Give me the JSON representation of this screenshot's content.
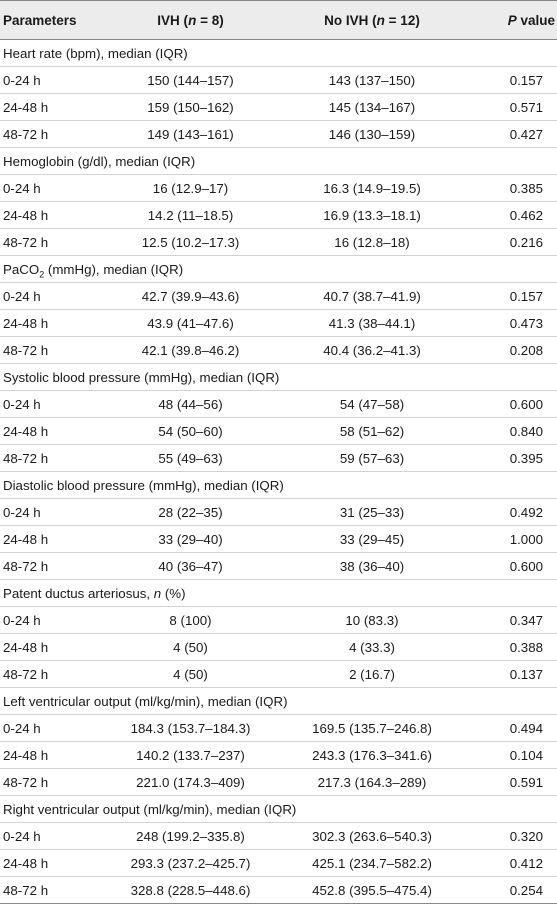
{
  "header": {
    "parameters": "Parameters",
    "ivh_prefix": "IVH (",
    "ivh_n": "n",
    "ivh_suffix": " = 8)",
    "noivh_prefix": "No IVH (",
    "noivh_n": "n",
    "noivh_suffix": " = 12)",
    "p_letter": "P",
    "p_rest": " value"
  },
  "sections": [
    {
      "title": "Heart rate (bpm), median (IQR)",
      "rows": [
        {
          "label": "0-24 h",
          "ivh": "150 (144–157)",
          "no_ivh": "143 (137–150)",
          "p": "0.157"
        },
        {
          "label": "24-48 h",
          "ivh": "159 (150–162)",
          "no_ivh": "145 (134–167)",
          "p": "0.571"
        },
        {
          "label": "48-72 h",
          "ivh": "149 (143–161)",
          "no_ivh": "146 (130–159)",
          "p": "0.427"
        }
      ]
    },
    {
      "title": "Hemoglobin (g/dl), median (IQR)",
      "rows": [
        {
          "label": "0-24 h",
          "ivh": "16 (12.9–17)",
          "no_ivh": "16.3 (14.9–19.5)",
          "p": "0.385"
        },
        {
          "label": "24-48 h",
          "ivh": "14.2 (11–18.5)",
          "no_ivh": "16.9 (13.3–18.1)",
          "p": "0.462"
        },
        {
          "label": "48-72 h",
          "ivh": "12.5 (10.2–17.3)",
          "no_ivh": "16 (12.8–18)",
          "p": "0.216"
        }
      ]
    },
    {
      "title_prefix": "PaCO",
      "title_sub": "2",
      "title_suffix": " (mmHg), median (IQR)",
      "rows": [
        {
          "label": "0-24 h",
          "ivh": "42.7 (39.9–43.6)",
          "no_ivh": "40.7 (38.7–41.9)",
          "p": "0.157"
        },
        {
          "label": "24-48 h",
          "ivh": "43.9 (41–47.6)",
          "no_ivh": "41.3 (38–44.1)",
          "p": "0.473"
        },
        {
          "label": "48-72 h",
          "ivh": "42.1 (39.8–46.2)",
          "no_ivh": "40.4 (36.2–41.3)",
          "p": "0.208"
        }
      ]
    },
    {
      "title": "Systolic blood pressure (mmHg), median (IQR)",
      "rows": [
        {
          "label": "0-24 h",
          "ivh": "48 (44–56)",
          "no_ivh": "54 (47–58)",
          "p": "0.600"
        },
        {
          "label": "24-48 h",
          "ivh": "54 (50–60)",
          "no_ivh": "58 (51–62)",
          "p": "0.840"
        },
        {
          "label": "48-72 h",
          "ivh": "55 (49–63)",
          "no_ivh": "59 (57–63)",
          "p": "0.395"
        }
      ]
    },
    {
      "title": "Diastolic blood pressure (mmHg), median (IQR)",
      "rows": [
        {
          "label": "0-24 h",
          "ivh": "28 (22–35)",
          "no_ivh": "31 (25–33)",
          "p": "0.492"
        },
        {
          "label": "24-48 h",
          "ivh": "33 (29–40)",
          "no_ivh": "33 (29–45)",
          "p": "1.000"
        },
        {
          "label": "48-72 h",
          "ivh": "40 (36–47)",
          "no_ivh": "38 (36–40)",
          "p": "0.600"
        }
      ]
    },
    {
      "title_prefix": "Patent ductus arteriosus, ",
      "title_italic": "n",
      "title_suffix": " (%)",
      "rows": [
        {
          "label": "0-24 h",
          "ivh": "8 (100)",
          "no_ivh": "10 (83.3)",
          "p": "0.347"
        },
        {
          "label": "24-48 h",
          "ivh": "4 (50)",
          "no_ivh": "4 (33.3)",
          "p": "0.388"
        },
        {
          "label": "48-72 h",
          "ivh": "4 (50)",
          "no_ivh": "2 (16.7)",
          "p": "0.137"
        }
      ]
    },
    {
      "title": "Left ventricular output (ml/kg/min), median (IQR)",
      "rows": [
        {
          "label": "0-24 h",
          "ivh": "184.3 (153.7–184.3)",
          "no_ivh": "169.5 (135.7–246.8)",
          "p": "0.494"
        },
        {
          "label": "24-48 h",
          "ivh": "140.2 (133.7–237)",
          "no_ivh": "243.3 (176.3–341.6)",
          "p": "0.104"
        },
        {
          "label": "48-72 h",
          "ivh": "221.0 (174.3–409)",
          "no_ivh": "217.3 (164.3–289)",
          "p": "0.591"
        }
      ]
    },
    {
      "title": "Right ventricular output (ml/kg/min), median (IQR)",
      "rows": [
        {
          "label": "0-24 h",
          "ivh": "248 (199.2–335.8)",
          "no_ivh": "302.3 (263.6–540.3)",
          "p": "0.320"
        },
        {
          "label": "24-48 h",
          "ivh": "293.3 (237.2–425.7)",
          "no_ivh": "425.1 (234.7–582.2)",
          "p": "0.412"
        },
        {
          "label": "48-72 h",
          "ivh": "328.8 (228.5–448.6)",
          "no_ivh": "452.8 (395.5–475.4)",
          "p": "0.254"
        }
      ]
    }
  ]
}
